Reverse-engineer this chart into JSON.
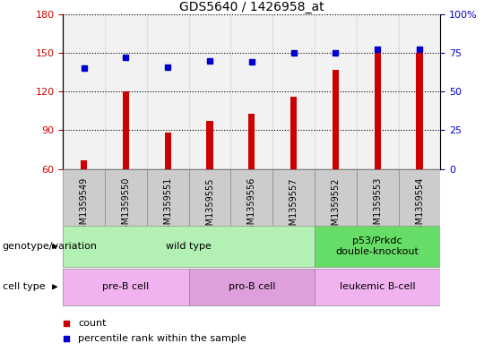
{
  "title": "GDS5640 / 1426958_at",
  "samples": [
    "GSM1359549",
    "GSM1359550",
    "GSM1359551",
    "GSM1359555",
    "GSM1359556",
    "GSM1359557",
    "GSM1359552",
    "GSM1359553",
    "GSM1359554"
  ],
  "counts": [
    67,
    120,
    88,
    97,
    103,
    116,
    137,
    150,
    150
  ],
  "percentiles": [
    65,
    72,
    66,
    70,
    69,
    75,
    75,
    77,
    77
  ],
  "ylim_left": [
    60,
    180
  ],
  "ylim_right": [
    0,
    100
  ],
  "yticks_left": [
    60,
    90,
    120,
    150,
    180
  ],
  "yticks_right": [
    0,
    25,
    50,
    75,
    100
  ],
  "genotype_groups": [
    {
      "label": "wild type",
      "start": 0,
      "end": 6,
      "color": "#b3f0b3"
    },
    {
      "label": "p53/Prkdc\ndouble-knockout",
      "start": 6,
      "end": 9,
      "color": "#66dd66"
    }
  ],
  "cell_type_groups": [
    {
      "label": "pre-B cell",
      "start": 0,
      "end": 3,
      "color": "#f0b3f0"
    },
    {
      "label": "pro-B cell",
      "start": 3,
      "end": 6,
      "color": "#dda0dd"
    },
    {
      "label": "leukemic B-cell",
      "start": 6,
      "end": 9,
      "color": "#f0b3f0"
    }
  ],
  "bar_color": "#cc0000",
  "dot_color": "#0000cc",
  "label_genotype": "genotype/variation",
  "label_celltype": "cell type",
  "legend_count": "count",
  "legend_percentile": "percentile rank within the sample",
  "left_axis_color": "#cc0000",
  "right_axis_color": "#0000cc",
  "bar_width": 0.15,
  "sample_box_color": "#cccccc",
  "plot_bg_color": "#ffffff",
  "right_tick_labels": [
    "0",
    "25",
    "50",
    "75",
    "100%"
  ]
}
